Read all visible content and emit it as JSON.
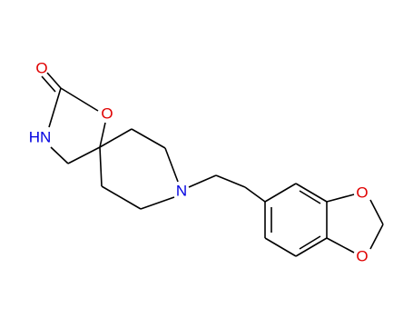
{
  "atoms": [
    {
      "label": "O",
      "color": "#e00000"
    },
    {
      "label": "O",
      "color": "#e00000"
    },
    {
      "label": "HN",
      "color": "#0000e0"
    },
    {
      "label": "N",
      "color": "#0000e0"
    },
    {
      "label": "O",
      "color": "#e00000"
    },
    {
      "label": "O",
      "color": "#e00000"
    }
  ]
}
